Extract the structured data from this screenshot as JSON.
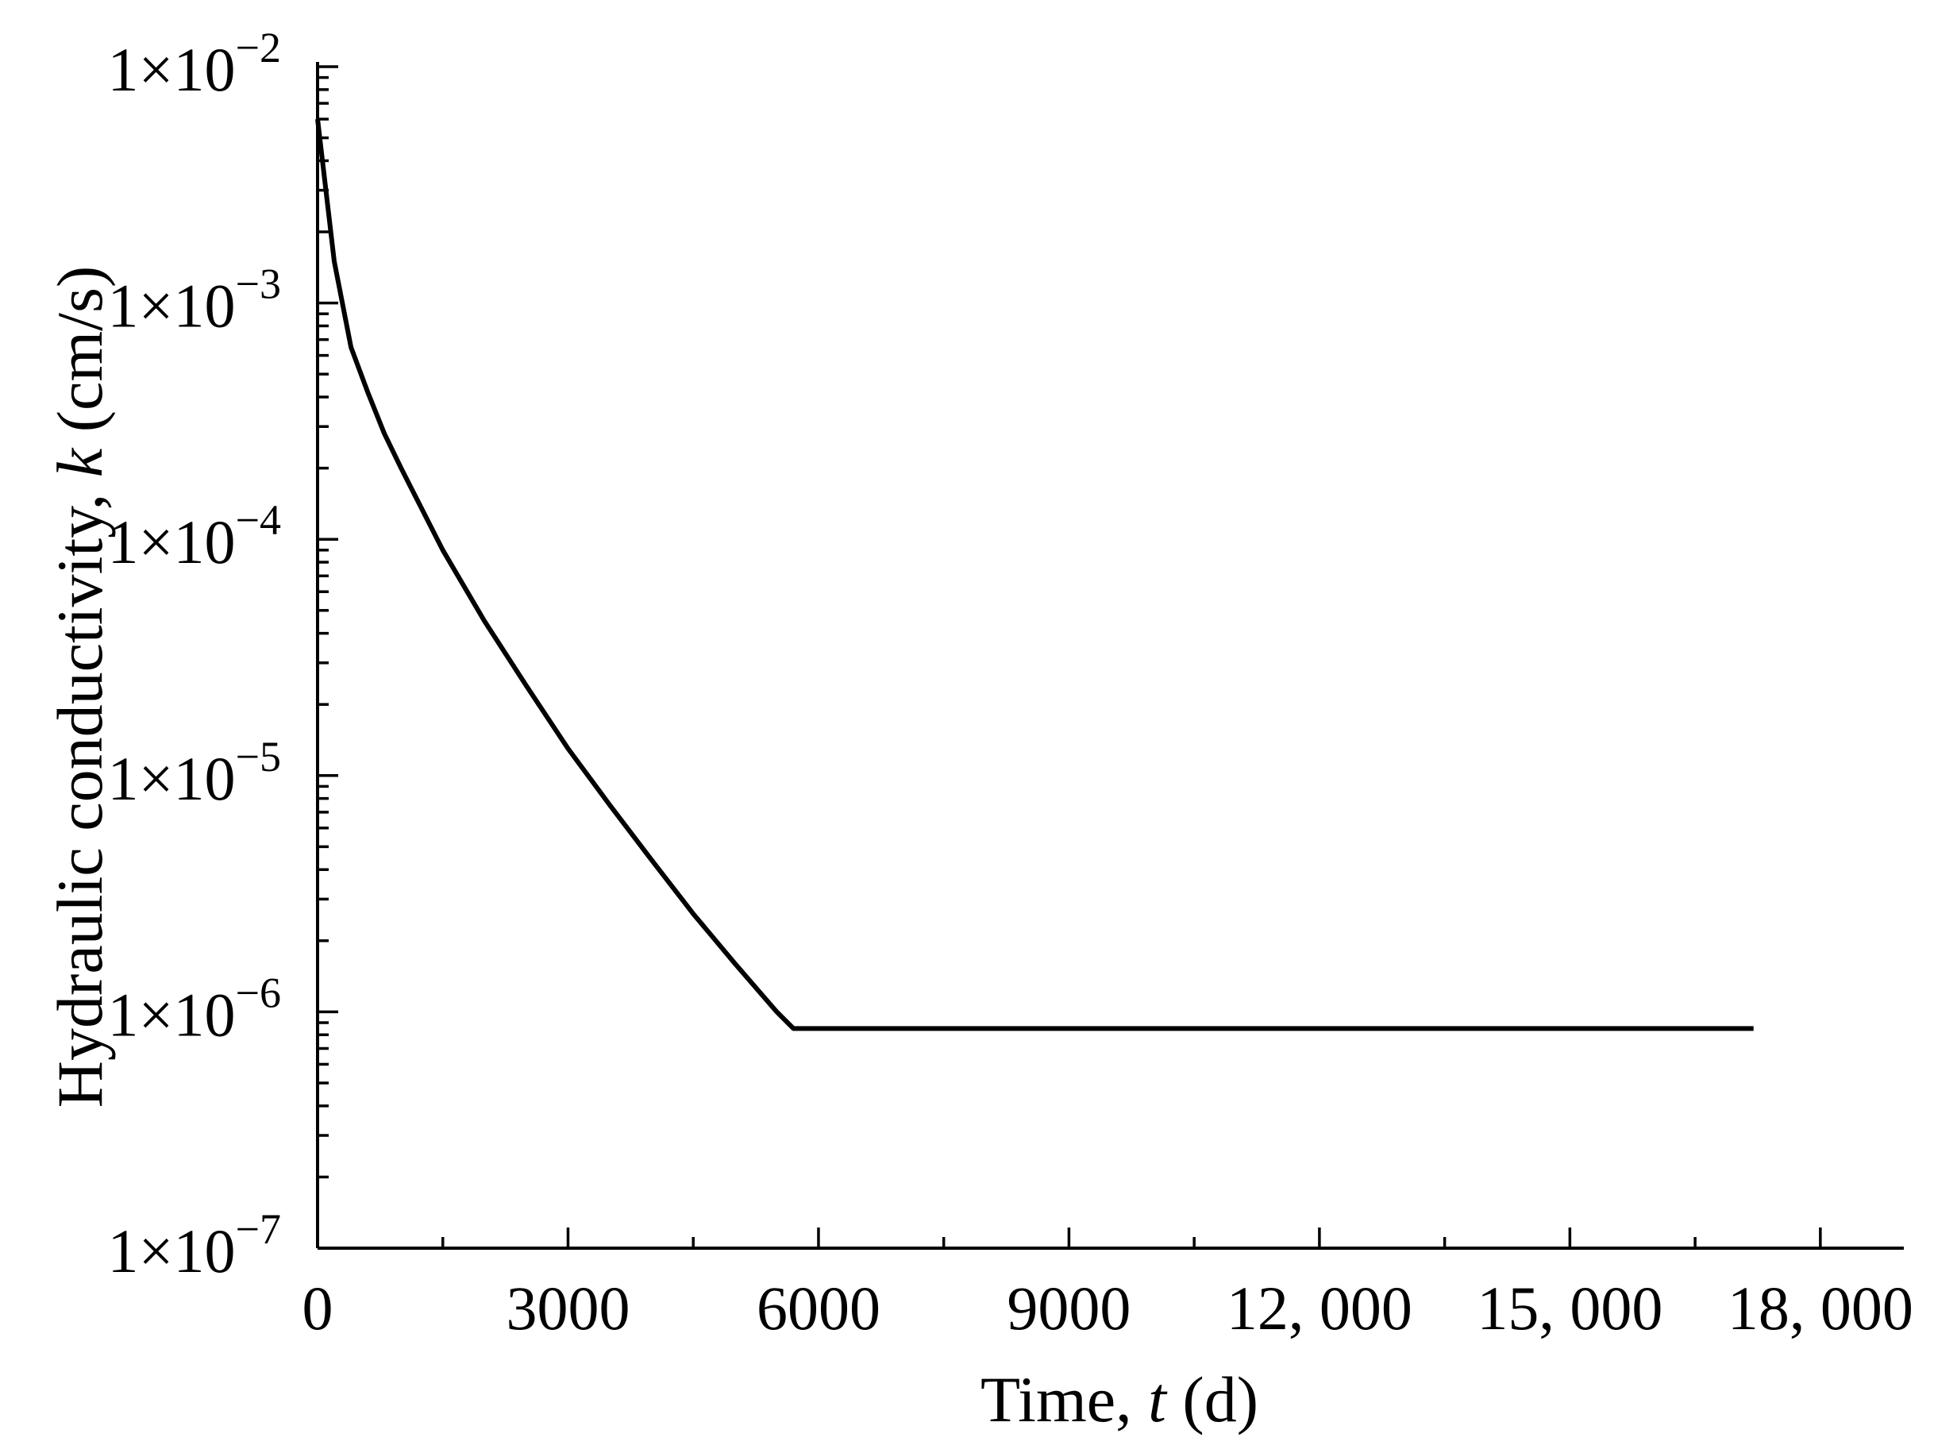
{
  "chart_data": {
    "type": "line",
    "x_label": {
      "prefix": "Time, ",
      "var": "t",
      "suffix": " (d)"
    },
    "y_label": {
      "prefix": "Hydraulic conductivity, ",
      "var": "k",
      "suffix": " (cm/s)"
    },
    "xlim": [
      0,
      19000
    ],
    "ylim": [
      1e-07,
      0.01
    ],
    "y_scale": "log",
    "x_ticks": [
      {
        "value": 0,
        "label": "0"
      },
      {
        "value": 3000,
        "label": "3000"
      },
      {
        "value": 6000,
        "label": "6000"
      },
      {
        "value": 9000,
        "label": "9000"
      },
      {
        "value": 12000,
        "label": "12, 000"
      },
      {
        "value": 15000,
        "label": "15, 000"
      },
      {
        "value": 18000,
        "label": "18, 000"
      }
    ],
    "y_ticks": [
      {
        "value": 1e-07,
        "mantissa": "1×10",
        "exponent": "−7"
      },
      {
        "value": 1e-06,
        "mantissa": "1×10",
        "exponent": "−6"
      },
      {
        "value": 1e-05,
        "mantissa": "1×10",
        "exponent": "−5"
      },
      {
        "value": 0.0001,
        "mantissa": "1×10",
        "exponent": "−4"
      },
      {
        "value": 0.001,
        "mantissa": "1×10",
        "exponent": "−3"
      },
      {
        "value": 0.01,
        "mantissa": "1×10",
        "exponent": "−2"
      }
    ],
    "grid": false,
    "series": [
      {
        "x": [
          0,
          100,
          200,
          400,
          600,
          800,
          1000,
          1500,
          2000,
          2500,
          3000,
          3500,
          4000,
          4500,
          5000,
          5500,
          5700,
          6000,
          9000,
          12000,
          15000,
          17200
        ],
        "y": [
          0.006,
          0.003,
          0.0015,
          0.00065,
          0.00042,
          0.00028,
          0.0002,
          9e-05,
          4.5e-05,
          2.4e-05,
          1.3e-05,
          7.5e-06,
          4.4e-06,
          2.6e-06,
          1.6e-06,
          1e-06,
          8.5e-07,
          8.5e-07,
          8.5e-07,
          8.5e-07,
          8.5e-07,
          8.5e-07
        ]
      }
    ]
  }
}
